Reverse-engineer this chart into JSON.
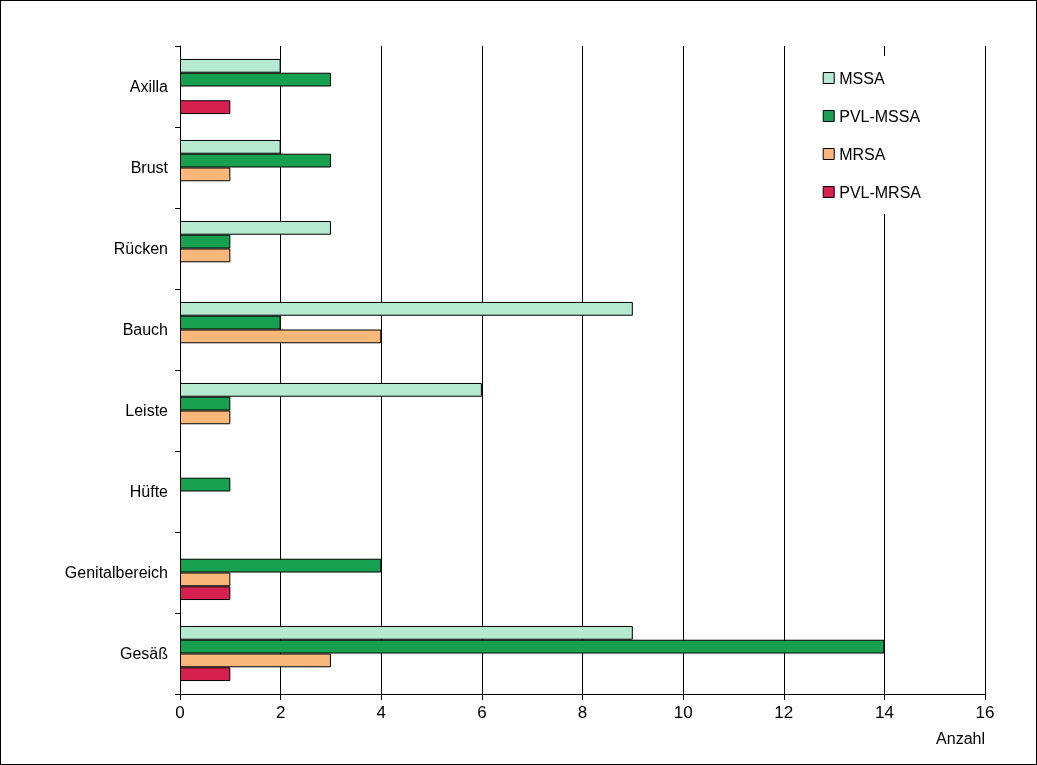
{
  "chart_data": {
    "type": "bar",
    "orientation": "horizontal",
    "xlabel": "Anzahl",
    "categories": [
      "Axilla",
      "Brust",
      "Rücken",
      "Bauch",
      "Leiste",
      "Hüfte",
      "Genitalbereich",
      "Gesäß"
    ],
    "series": [
      {
        "name": "MSSA",
        "color": "#b5ead0",
        "values": [
          2,
          2,
          3,
          9,
          6,
          0,
          0,
          9
        ]
      },
      {
        "name": "PVL-MSSA",
        "color": "#17a050",
        "values": [
          3,
          3,
          1,
          2,
          1,
          1,
          4,
          14
        ]
      },
      {
        "name": "MRSA",
        "color": "#f9b77a",
        "values": [
          0,
          1,
          1,
          4,
          1,
          0,
          1,
          3
        ]
      },
      {
        "name": "PVL-MRSA",
        "color": "#d6204f",
        "values": [
          1,
          0,
          0,
          0,
          0,
          0,
          1,
          1
        ]
      }
    ],
    "xlim": [
      0,
      16
    ],
    "xticks": [
      0,
      2,
      4,
      6,
      8,
      10,
      12,
      14,
      16
    ],
    "grid": "x",
    "legend": "top right"
  }
}
